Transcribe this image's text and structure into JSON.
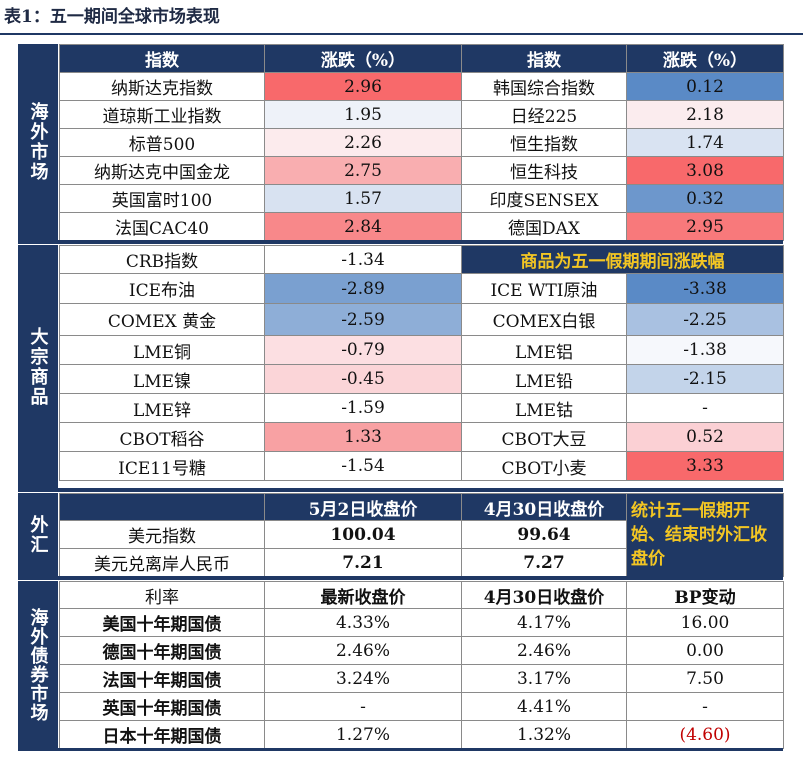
{
  "caption": "表1：五一期间全球市场表现",
  "overseas": {
    "label": "海外市场",
    "headers": [
      "指数",
      "涨跌（%）",
      "指数",
      "涨跌（%）"
    ],
    "rows": [
      {
        "a": "纳斯达克指数",
        "av": "2.96",
        "b": "韩国综合指数",
        "bv": "0.12"
      },
      {
        "a": "道琼斯工业指数",
        "av": "1.95",
        "b": "日经225",
        "bv": "2.18"
      },
      {
        "a": "标普500",
        "av": "2.26",
        "b": "恒生指数",
        "bv": "1.74"
      },
      {
        "a": "纳斯达克中国金龙",
        "av": "2.75",
        "b": "恒生科技",
        "bv": "3.08"
      },
      {
        "a": "英国富时100",
        "av": "1.57",
        "b": "印度SENSEX",
        "bv": "0.32"
      },
      {
        "a": "法国CAC40",
        "av": "2.84",
        "b": "德国DAX",
        "bv": "2.95"
      }
    ]
  },
  "commodities": {
    "label": "大宗商品",
    "note": "商品为五一假期期间涨跌幅",
    "rows": [
      {
        "a": "CRB指数",
        "av": "-1.34"
      },
      {
        "a": "ICE布油",
        "av": "-2.89",
        "b": "ICE WTI原油",
        "bv": "-3.38"
      },
      {
        "a": "COMEX 黄金",
        "av": "-2.59",
        "b": "COMEX白银",
        "bv": "-2.25"
      },
      {
        "a": "LME铜",
        "av": "-0.79",
        "b": "LME铝",
        "bv": "-1.38"
      },
      {
        "a": "LME镍",
        "av": "-0.45",
        "b": "LME铅",
        "bv": "-2.15"
      },
      {
        "a": "LME锌",
        "av": "-1.59",
        "b": "LME钴",
        "bv": "-"
      },
      {
        "a": "CBOT稻谷",
        "av": "1.33",
        "b": "CBOT大豆",
        "bv": "0.52"
      },
      {
        "a": "ICE11号糖",
        "av": "-1.54",
        "b": "CBOT小麦",
        "bv": "3.33"
      }
    ]
  },
  "fx": {
    "label": "外汇",
    "headers": [
      "5月2日收盘价",
      "4月30日收盘价"
    ],
    "note": "统计五一假期开始、结束时外汇收盘价",
    "rows": [
      {
        "a": "美元指数",
        "v1": "100.04",
        "v2": "99.64"
      },
      {
        "a": "美元兑离岸人民币",
        "v1": "7.21",
        "v2": "7.27"
      }
    ]
  },
  "bonds": {
    "label": "海外债券市场",
    "headers": [
      "利率",
      "最新收盘价",
      "4月30日收盘价",
      "BP变动"
    ],
    "rows": [
      {
        "a": "美国十年期国债",
        "v1": "4.33%",
        "v2": "4.17%",
        "v3": "16.00"
      },
      {
        "a": "德国十年期国债",
        "v1": "2.46%",
        "v2": "2.46%",
        "v3": "0.00"
      },
      {
        "a": "法国十年期国债",
        "v1": "3.24%",
        "v2": "3.17%",
        "v3": "7.50"
      },
      {
        "a": "英国十年期国债",
        "v1": "-",
        "v2": "4.41%",
        "v3": "-"
      },
      {
        "a": "日本十年期国债",
        "v1": "1.27%",
        "v2": "1.32%",
        "v3": "(4.60)"
      }
    ]
  },
  "colors": {
    "navy": "#1f3864",
    "note_yellow": "#f3c623",
    "red_strong": "#f8696b",
    "blue_strong": "#5a8ac6"
  }
}
